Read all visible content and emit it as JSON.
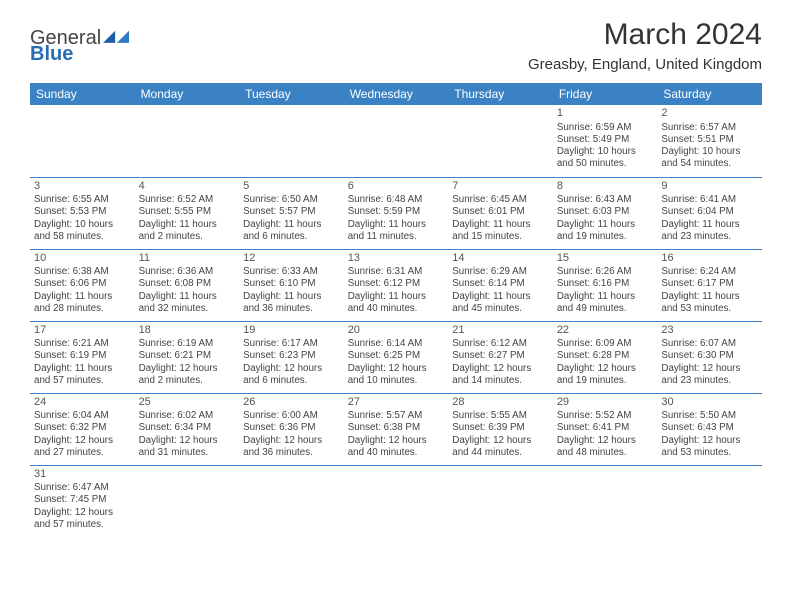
{
  "logo": {
    "name": "General",
    "sub": "Blue"
  },
  "title": "March 2024",
  "location": "Greasby, England, United Kingdom",
  "header_color": "#3b82c4",
  "row_border_color": "#3b82c4",
  "background_color": "#ffffff",
  "text_color": "#444444",
  "daynames": [
    "Sunday",
    "Monday",
    "Tuesday",
    "Wednesday",
    "Thursday",
    "Friday",
    "Saturday"
  ],
  "first_weekday_index": 5,
  "days_in_month": 31,
  "days": {
    "1": {
      "sunrise": "6:59 AM",
      "sunset": "5:49 PM",
      "daylight": "10 hours and 50 minutes."
    },
    "2": {
      "sunrise": "6:57 AM",
      "sunset": "5:51 PM",
      "daylight": "10 hours and 54 minutes."
    },
    "3": {
      "sunrise": "6:55 AM",
      "sunset": "5:53 PM",
      "daylight": "10 hours and 58 minutes."
    },
    "4": {
      "sunrise": "6:52 AM",
      "sunset": "5:55 PM",
      "daylight": "11 hours and 2 minutes."
    },
    "5": {
      "sunrise": "6:50 AM",
      "sunset": "5:57 PM",
      "daylight": "11 hours and 6 minutes."
    },
    "6": {
      "sunrise": "6:48 AM",
      "sunset": "5:59 PM",
      "daylight": "11 hours and 11 minutes."
    },
    "7": {
      "sunrise": "6:45 AM",
      "sunset": "6:01 PM",
      "daylight": "11 hours and 15 minutes."
    },
    "8": {
      "sunrise": "6:43 AM",
      "sunset": "6:03 PM",
      "daylight": "11 hours and 19 minutes."
    },
    "9": {
      "sunrise": "6:41 AM",
      "sunset": "6:04 PM",
      "daylight": "11 hours and 23 minutes."
    },
    "10": {
      "sunrise": "6:38 AM",
      "sunset": "6:06 PM",
      "daylight": "11 hours and 28 minutes."
    },
    "11": {
      "sunrise": "6:36 AM",
      "sunset": "6:08 PM",
      "daylight": "11 hours and 32 minutes."
    },
    "12": {
      "sunrise": "6:33 AM",
      "sunset": "6:10 PM",
      "daylight": "11 hours and 36 minutes."
    },
    "13": {
      "sunrise": "6:31 AM",
      "sunset": "6:12 PM",
      "daylight": "11 hours and 40 minutes."
    },
    "14": {
      "sunrise": "6:29 AM",
      "sunset": "6:14 PM",
      "daylight": "11 hours and 45 minutes."
    },
    "15": {
      "sunrise": "6:26 AM",
      "sunset": "6:16 PM",
      "daylight": "11 hours and 49 minutes."
    },
    "16": {
      "sunrise": "6:24 AM",
      "sunset": "6:17 PM",
      "daylight": "11 hours and 53 minutes."
    },
    "17": {
      "sunrise": "6:21 AM",
      "sunset": "6:19 PM",
      "daylight": "11 hours and 57 minutes."
    },
    "18": {
      "sunrise": "6:19 AM",
      "sunset": "6:21 PM",
      "daylight": "12 hours and 2 minutes."
    },
    "19": {
      "sunrise": "6:17 AM",
      "sunset": "6:23 PM",
      "daylight": "12 hours and 6 minutes."
    },
    "20": {
      "sunrise": "6:14 AM",
      "sunset": "6:25 PM",
      "daylight": "12 hours and 10 minutes."
    },
    "21": {
      "sunrise": "6:12 AM",
      "sunset": "6:27 PM",
      "daylight": "12 hours and 14 minutes."
    },
    "22": {
      "sunrise": "6:09 AM",
      "sunset": "6:28 PM",
      "daylight": "12 hours and 19 minutes."
    },
    "23": {
      "sunrise": "6:07 AM",
      "sunset": "6:30 PM",
      "daylight": "12 hours and 23 minutes."
    },
    "24": {
      "sunrise": "6:04 AM",
      "sunset": "6:32 PM",
      "daylight": "12 hours and 27 minutes."
    },
    "25": {
      "sunrise": "6:02 AM",
      "sunset": "6:34 PM",
      "daylight": "12 hours and 31 minutes."
    },
    "26": {
      "sunrise": "6:00 AM",
      "sunset": "6:36 PM",
      "daylight": "12 hours and 36 minutes."
    },
    "27": {
      "sunrise": "5:57 AM",
      "sunset": "6:38 PM",
      "daylight": "12 hours and 40 minutes."
    },
    "28": {
      "sunrise": "5:55 AM",
      "sunset": "6:39 PM",
      "daylight": "12 hours and 44 minutes."
    },
    "29": {
      "sunrise": "5:52 AM",
      "sunset": "6:41 PM",
      "daylight": "12 hours and 48 minutes."
    },
    "30": {
      "sunrise": "5:50 AM",
      "sunset": "6:43 PM",
      "daylight": "12 hours and 53 minutes."
    },
    "31": {
      "sunrise": "6:47 AM",
      "sunset": "7:45 PM",
      "daylight": "12 hours and 57 minutes."
    }
  }
}
